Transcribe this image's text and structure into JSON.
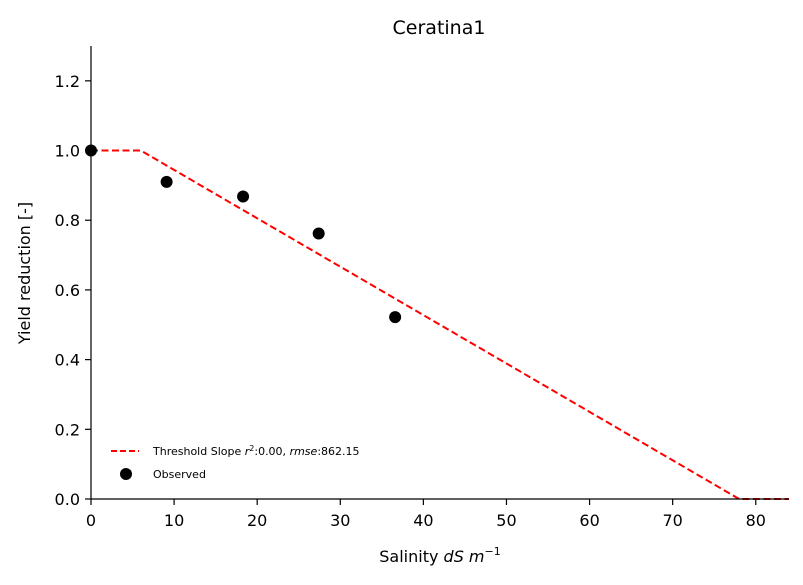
{
  "chart_data": {
    "type": "scatter",
    "title": "Ceratina1",
    "xlabel_prefix": "Salinity ",
    "xlabel_italic": "dS m",
    "xlabel_superscript": "−1",
    "ylabel": "Yield reduction [-]",
    "xlim": [
      0,
      84
    ],
    "ylim": [
      0,
      1.3
    ],
    "xticks": [
      0,
      10,
      20,
      30,
      40,
      50,
      60,
      70,
      80
    ],
    "yticks": [
      0.0,
      0.2,
      0.4,
      0.6,
      0.8,
      1.0,
      1.2
    ],
    "xtick_labels": [
      "0",
      "10",
      "20",
      "30",
      "40",
      "50",
      "60",
      "70",
      "80"
    ],
    "ytick_labels": [
      "0.0",
      "0.2",
      "0.4",
      "0.6",
      "0.8",
      "1.0",
      "1.2"
    ],
    "grid": false,
    "legend_position": "lower-left",
    "series": [
      {
        "name": "Threshold Slope r²:0.00, rmse:862.15",
        "kind": "line",
        "style": "dashed",
        "color": "#ff0000",
        "x": [
          0,
          6,
          78,
          84
        ],
        "y": [
          1.0,
          1.0,
          0.0,
          0.0
        ]
      },
      {
        "name": "Observed",
        "kind": "scatter",
        "color": "#000000",
        "x": [
          0,
          9.1,
          18.3,
          27.4,
          36.6
        ],
        "y": [
          1.0,
          0.91,
          0.868,
          0.762,
          0.522
        ]
      }
    ],
    "legend": {
      "line_label_prefix": "Threshold Slope ",
      "line_label_r": "r",
      "line_label_r_sup": "2",
      "line_label_mid": ":0.00, ",
      "line_label_rmse": "rmse",
      "line_label_end": ":862.15",
      "scatter_label": "Observed"
    }
  }
}
